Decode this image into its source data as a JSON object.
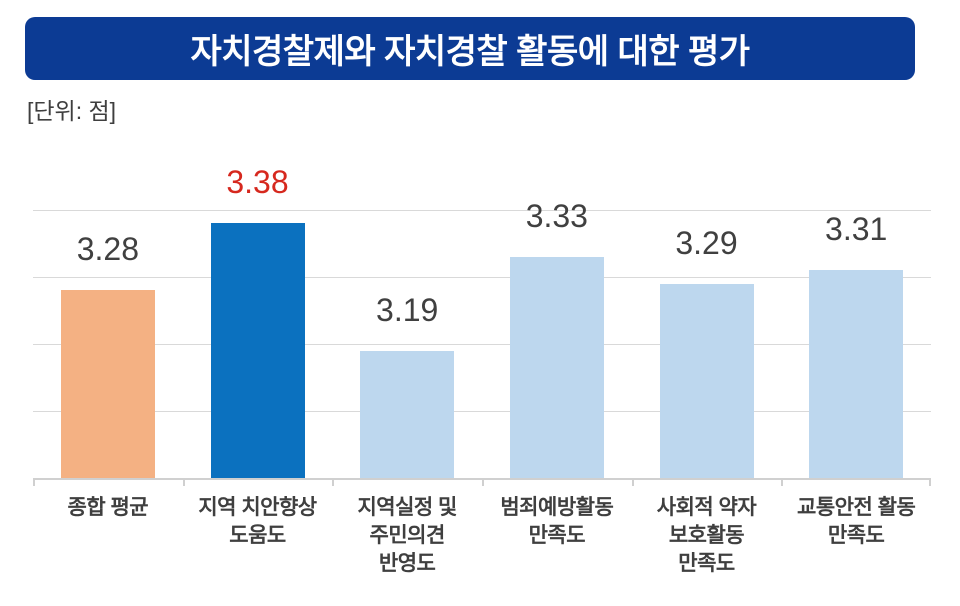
{
  "title": "자치경찰제와 자치경찰 활동에 대한 평가",
  "unit_label": "[단위: 점]",
  "colors": {
    "banner_bg": "#0C3B94",
    "banner_text": "#FFFFFF",
    "bar_default": "#BDD7EE",
    "bar_average": "#F4B183",
    "bar_highlight": "#0B71BF",
    "value_label": "#404040",
    "value_label_highlight": "#D6281E",
    "gridline": "#D9D9D9",
    "axis": "#D0D0D0",
    "category_label": "#3F3F3F"
  },
  "chart_data": {
    "type": "bar",
    "title": "자치경찰제와 자치경찰 활동에 대한 평가",
    "unit": "점",
    "categories": [
      "종합 평균",
      "지역 치안향상\n도움도",
      "지역실정 및\n주민의견\n반영도",
      "범죄예방활동\n만족도",
      "사회적 약자\n보호활동\n만족도",
      "교통안전 활동\n만족도"
    ],
    "values": [
      3.28,
      3.38,
      3.19,
      3.33,
      3.29,
      3.31
    ],
    "value_labels": [
      "3.28",
      "3.38",
      "3.19",
      "3.33",
      "3.29",
      "3.31"
    ],
    "bar_styles": [
      "average",
      "highlight",
      "default",
      "default",
      "default",
      "default"
    ],
    "value_label_styles": [
      "normal",
      "highlight",
      "normal",
      "normal",
      "normal",
      "normal"
    ],
    "xlabel": "",
    "ylabel": "점",
    "ylim": [
      3.0,
      3.4
    ],
    "grid_interval": 0.1,
    "grid": true,
    "legend_position": "none"
  }
}
